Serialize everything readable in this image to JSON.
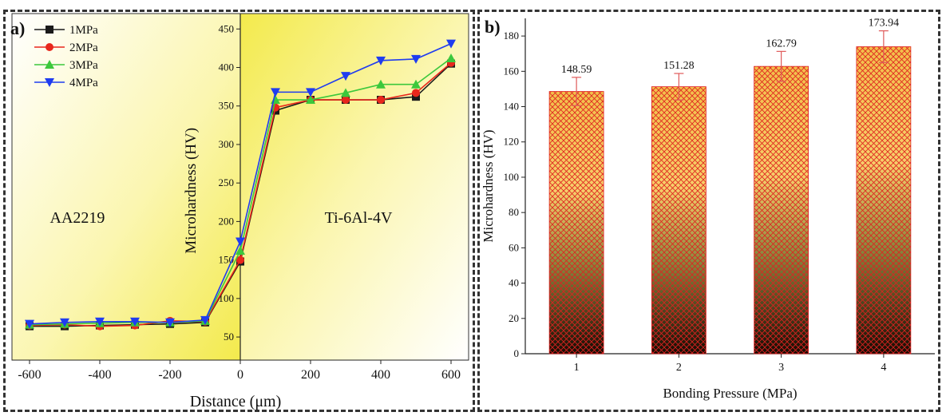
{
  "chart_data": [
    {
      "panel_label": "a)",
      "type": "line",
      "xlabel": "Distance (μm)",
      "ylabel": "Microhardness (HV)",
      "xlim": [
        -650,
        650
      ],
      "ylim": [
        20,
        470
      ],
      "x_ticks": [
        -600,
        -400,
        -200,
        0,
        200,
        400,
        600
      ],
      "y_ticks": [
        50,
        100,
        150,
        200,
        250,
        300,
        350,
        400,
        450
      ],
      "region_labels": [
        "AA2219",
        "Ti-6Al-4V"
      ],
      "legend_position": "top-left",
      "x": [
        -600,
        -500,
        -400,
        -300,
        -200,
        -100,
        0,
        100,
        200,
        300,
        400,
        500,
        600
      ],
      "series": [
        {
          "name": "1MPa",
          "color": "#1a1a1a",
          "marker": "square",
          "values": [
            64,
            64,
            65,
            66,
            67,
            69,
            148,
            344,
            358,
            358,
            358,
            362,
            405
          ]
        },
        {
          "name": "2MPa",
          "color": "#e8271c",
          "marker": "circle",
          "values": [
            65,
            66,
            64,
            65,
            71,
            70,
            150,
            348,
            358,
            358,
            358,
            367,
            406
          ]
        },
        {
          "name": "3MPa",
          "color": "#3cc83c",
          "marker": "triangle-up",
          "values": [
            66,
            67,
            68,
            69,
            69,
            71,
            162,
            358,
            358,
            367,
            378,
            378,
            412
          ]
        },
        {
          "name": "4MPa",
          "color": "#1f3cf0",
          "marker": "triangle-down",
          "values": [
            67,
            69,
            70,
            70,
            69,
            72,
            174,
            368,
            368,
            389,
            409,
            411,
            431
          ]
        }
      ]
    },
    {
      "panel_label": "b)",
      "type": "bar",
      "xlabel": "Bonding Pressure (MPa)",
      "ylabel": "Microhardness (HV)",
      "ylim": [
        0,
        190
      ],
      "y_ticks": [
        0,
        20,
        40,
        60,
        80,
        100,
        120,
        140,
        160,
        180
      ],
      "categories": [
        "1",
        "2",
        "3",
        "4"
      ],
      "values": [
        148.59,
        151.28,
        162.79,
        173.94
      ],
      "value_labels": [
        "148.59",
        "151.28",
        "162.79",
        "173.94"
      ],
      "errors": [
        8,
        7.5,
        8.5,
        9
      ],
      "bar_color": "#f2c04a",
      "hatch_color": "#e02020"
    }
  ]
}
